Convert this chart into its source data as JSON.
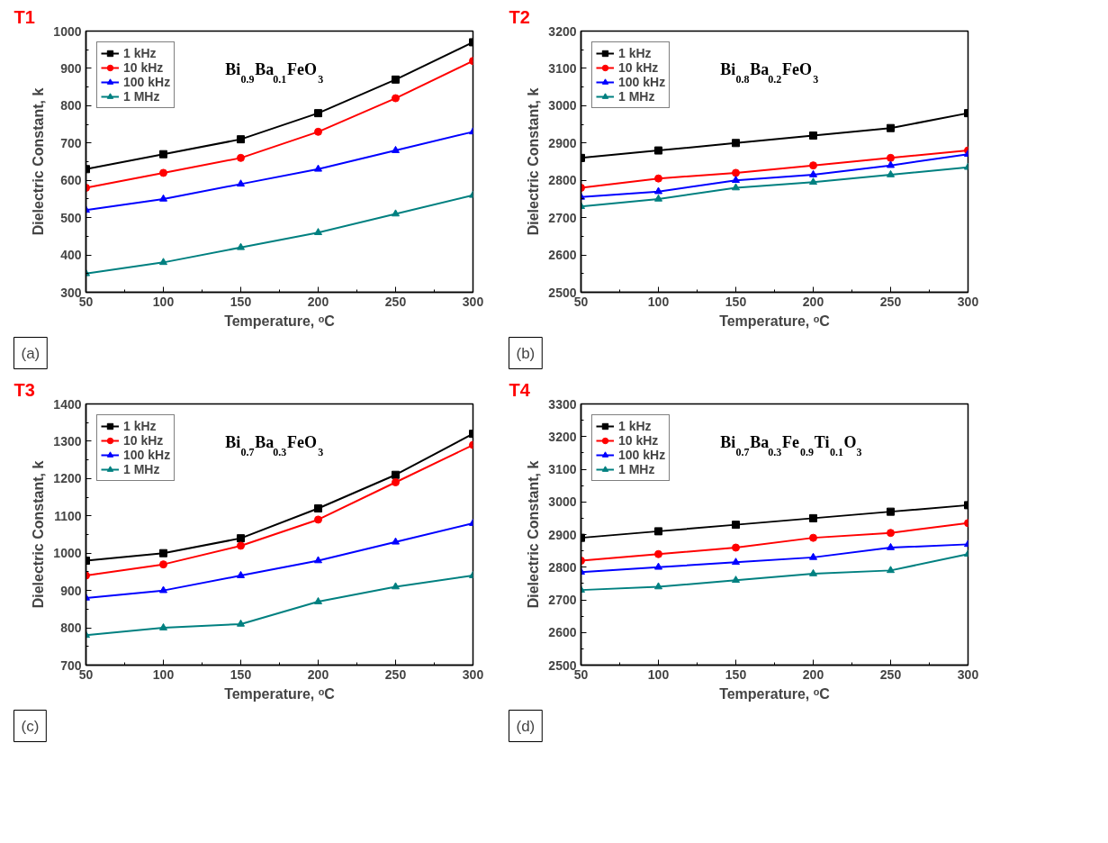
{
  "chart_data": [
    {
      "type": "line",
      "title": "T1",
      "xlabel": "Temperature, ᵒC",
      "ylabel": "Dielectric Constant, k",
      "x": [
        50,
        100,
        150,
        200,
        250,
        300
      ],
      "xlim": [
        50,
        300
      ],
      "xticks": [
        50,
        100,
        150,
        200,
        250,
        300
      ],
      "ylim": [
        300,
        1000
      ],
      "yticks": [
        300,
        400,
        500,
        600,
        700,
        800,
        900,
        1000
      ],
      "grid": false,
      "legend": "top left",
      "line_style": "solid",
      "annotations": [
        "Bi$_{0.9}$Ba$_{0.1}$FeO$_{3}$",
        "(a)"
      ],
      "series": [
        {
          "name": "1 kHz",
          "color": "#000000",
          "marker": "square",
          "values": [
            630,
            670,
            710,
            780,
            870,
            970
          ]
        },
        {
          "name": "10 kHz",
          "color": "#ff0000",
          "marker": "circle",
          "values": [
            580,
            620,
            660,
            730,
            820,
            920
          ]
        },
        {
          "name": "100 kHz",
          "color": "#0000ff",
          "marker": "triangle",
          "values": [
            520,
            550,
            590,
            630,
            680,
            730
          ]
        },
        {
          "name": "1 MHz",
          "color": "#008080",
          "marker": "triangle",
          "values": [
            350,
            380,
            420,
            460,
            510,
            560
          ]
        }
      ]
    },
    {
      "type": "line",
      "title": "T2",
      "xlabel": "Temperature, ᵒC",
      "ylabel": "Dielectric Constant, k",
      "x": [
        50,
        100,
        150,
        200,
        250,
        300
      ],
      "xlim": [
        50,
        300
      ],
      "xticks": [
        50,
        100,
        150,
        200,
        250,
        300
      ],
      "ylim": [
        2500,
        3200
      ],
      "yticks": [
        2500,
        2600,
        2700,
        2800,
        2900,
        3000,
        3100,
        3200
      ],
      "grid": false,
      "legend": "top left",
      "line_style": "solid",
      "annotations": [
        "Bi$_{0.8}$Ba$_{0.2}$FeO$_{3}$",
        "(b)"
      ],
      "series": [
        {
          "name": "1 kHz",
          "color": "#000000",
          "marker": "square",
          "values": [
            2860,
            2880,
            2900,
            2920,
            2940,
            2980
          ]
        },
        {
          "name": "10 kHz",
          "color": "#ff0000",
          "marker": "circle",
          "values": [
            2780,
            2805,
            2820,
            2840,
            2860,
            2880
          ]
        },
        {
          "name": "100 kHz",
          "color": "#0000ff",
          "marker": "triangle",
          "values": [
            2755,
            2770,
            2800,
            2815,
            2840,
            2870
          ]
        },
        {
          "name": "1 MHz",
          "color": "#008080",
          "marker": "triangle",
          "values": [
            2730,
            2750,
            2780,
            2795,
            2815,
            2835
          ]
        }
      ]
    },
    {
      "type": "line",
      "title": "T3",
      "xlabel": "Temperature, ᵒC",
      "ylabel": "Dielectric Constant, k",
      "x": [
        50,
        100,
        150,
        200,
        250,
        300
      ],
      "xlim": [
        50,
        300
      ],
      "xticks": [
        50,
        100,
        150,
        200,
        250,
        300
      ],
      "ylim": [
        700,
        1400
      ],
      "yticks": [
        700,
        800,
        900,
        1000,
        1100,
        1200,
        1300,
        1400
      ],
      "grid": false,
      "legend": "top left",
      "line_style": "solid",
      "annotations": [
        "Bi$_{0.7}$Ba$_{0.3}$FeO$_{3}$",
        "(c)"
      ],
      "series": [
        {
          "name": "1 kHz",
          "color": "#000000",
          "marker": "square",
          "values": [
            980,
            1000,
            1040,
            1120,
            1210,
            1320
          ]
        },
        {
          "name": "10 kHz",
          "color": "#ff0000",
          "marker": "circle",
          "values": [
            940,
            970,
            1020,
            1090,
            1190,
            1290
          ]
        },
        {
          "name": "100 kHz",
          "color": "#0000ff",
          "marker": "triangle",
          "values": [
            880,
            900,
            940,
            980,
            1030,
            1080
          ]
        },
        {
          "name": "1 MHz",
          "color": "#008080",
          "marker": "triangle",
          "values": [
            780,
            800,
            810,
            870,
            910,
            940
          ]
        }
      ]
    },
    {
      "type": "line",
      "title": "T4",
      "xlabel": "Temperature, ᵒC",
      "ylabel": "Dielectric Constant, k",
      "x": [
        50,
        100,
        150,
        200,
        250,
        300
      ],
      "xlim": [
        50,
        300
      ],
      "xticks": [
        50,
        100,
        150,
        200,
        250,
        300
      ],
      "ylim": [
        2500,
        3300
      ],
      "yticks": [
        2500,
        2600,
        2700,
        2800,
        2900,
        3000,
        3100,
        3200,
        3300
      ],
      "grid": false,
      "legend": "top left",
      "line_style": "solid",
      "annotations": [
        "Bi$_{0.7}$Ba$_{0.3}$Fe$_{0.9}$Ti$_{0.1}$O$_{3}$",
        "(d)"
      ],
      "series": [
        {
          "name": "1 kHz",
          "color": "#000000",
          "marker": "square",
          "values": [
            2890,
            2910,
            2930,
            2950,
            2970,
            2990
          ]
        },
        {
          "name": "10 kHz",
          "color": "#ff0000",
          "marker": "circle",
          "values": [
            2820,
            2840,
            2860,
            2890,
            2905,
            2935
          ]
        },
        {
          "name": "100 kHz",
          "color": "#0000ff",
          "marker": "triangle",
          "values": [
            2785,
            2800,
            2815,
            2830,
            2860,
            2870
          ]
        },
        {
          "name": "1 MHz",
          "color": "#008080",
          "marker": "triangle",
          "values": [
            2730,
            2740,
            2760,
            2780,
            2790,
            2840
          ]
        }
      ]
    }
  ]
}
